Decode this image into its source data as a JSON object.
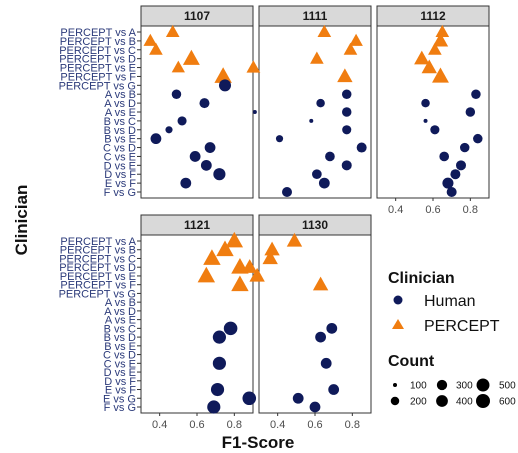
{
  "chart_data": {
    "type": "scatter",
    "xlabel": "F1-Score",
    "ylabel": "Clinician",
    "categories_top": [
      "PERCEPT vs A",
      "PERCEPT vs B",
      "PERCEPT vs C",
      "PERCEPT vs D",
      "PERCEPT vs E",
      "PERCEPT vs F",
      "PERCEPT vs G",
      "A vs B",
      "A vs D",
      "A vs E",
      "B vs C",
      "B vs D",
      "B vs E",
      "C vs D",
      "C vs E",
      "D vs E",
      "D vs F",
      "E vs F",
      "F vs G"
    ],
    "categories_bottom": [
      "PERCEPT vs A",
      "PERCEPT vs B",
      "PERCEPT vs C",
      "PERCEPT vs D",
      "PERCEPT vs E",
      "PERCEPT vs F",
      "PERCEPT vs G",
      "A vs B",
      "A vs D",
      "A vs E",
      "B vs C",
      "B vs D",
      "B vs E",
      "C vs D",
      "C vs E",
      "D vs E",
      "D vs F",
      "E vs F",
      "E vs G",
      "F vs G"
    ],
    "xticks": [
      0.4,
      0.6,
      0.8
    ],
    "xlim": [
      0.3,
      0.9
    ],
    "size_legend_range": [
      100,
      600
    ],
    "panels": [
      {
        "name": "1107",
        "row": "top",
        "points": [
          {
            "y": "PERCEPT vs A",
            "x": 0.47,
            "group": "PERCEPT",
            "count": 320
          },
          {
            "y": "PERCEPT vs B",
            "x": 0.35,
            "group": "PERCEPT",
            "count": 320
          },
          {
            "y": "PERCEPT vs C",
            "x": 0.38,
            "group": "PERCEPT",
            "count": 320
          },
          {
            "y": "PERCEPT vs D",
            "x": 0.57,
            "group": "PERCEPT",
            "count": 520
          },
          {
            "y": "PERCEPT vs E",
            "x": 0.5,
            "group": "PERCEPT",
            "count": 300
          },
          {
            "y": "PERCEPT vs F",
            "x": 0.74,
            "group": "PERCEPT",
            "count": 560
          },
          {
            "y": "PERCEPT vs G",
            "x": 0.75,
            "group": "Human",
            "count": 420
          },
          {
            "y": "A vs B",
            "x": 0.49,
            "group": "Human",
            "count": 250
          },
          {
            "y": "A vs D",
            "x": 0.64,
            "group": "Human",
            "count": 280
          },
          {
            "y": "A vs E",
            "x": 0.91,
            "group": "Human",
            "count": 100
          },
          {
            "y": "B vs C",
            "x": 0.52,
            "group": "Human",
            "count": 230
          },
          {
            "y": "B vs D",
            "x": 0.45,
            "group": "Human",
            "count": 150
          },
          {
            "y": "B vs E",
            "x": 0.38,
            "group": "Human",
            "count": 330
          },
          {
            "y": "C vs D",
            "x": 0.67,
            "group": "Human",
            "count": 330
          },
          {
            "y": "C vs E",
            "x": 0.59,
            "group": "Human",
            "count": 330
          },
          {
            "y": "D vs E",
            "x": 0.65,
            "group": "Human",
            "count": 330
          },
          {
            "y": "D vs F",
            "x": 0.72,
            "group": "Human",
            "count": 430
          },
          {
            "y": "E vs F",
            "x": 0.54,
            "group": "Human",
            "count": 330
          }
        ]
      },
      {
        "name": "1111",
        "row": "top",
        "points": [
          {
            "y": "PERCEPT vs A",
            "x": 0.65,
            "group": "PERCEPT",
            "count": 320
          },
          {
            "y": "PERCEPT vs B",
            "x": 0.82,
            "group": "PERCEPT",
            "count": 320
          },
          {
            "y": "PERCEPT vs C",
            "x": 0.79,
            "group": "PERCEPT",
            "count": 320
          },
          {
            "y": "PERCEPT vs D",
            "x": 0.61,
            "group": "PERCEPT",
            "count": 320
          },
          {
            "y": "PERCEPT vs E",
            "x": 0.27,
            "group": "PERCEPT",
            "count": 330
          },
          {
            "y": "PERCEPT vs F",
            "x": 0.76,
            "group": "PERCEPT",
            "count": 420
          },
          {
            "y": "A vs B",
            "x": 0.77,
            "group": "Human",
            "count": 250
          },
          {
            "y": "A vs D",
            "x": 0.63,
            "group": "Human",
            "count": 200
          },
          {
            "y": "A vs E",
            "x": 0.77,
            "group": "Human",
            "count": 250
          },
          {
            "y": "B vs C",
            "x": 0.58,
            "group": "Human",
            "count": 100
          },
          {
            "y": "B vs D",
            "x": 0.77,
            "group": "Human",
            "count": 230
          },
          {
            "y": "B vs E",
            "x": 0.41,
            "group": "Human",
            "count": 150
          },
          {
            "y": "C vs D",
            "x": 0.85,
            "group": "Human",
            "count": 280
          },
          {
            "y": "C vs E",
            "x": 0.68,
            "group": "Human",
            "count": 260
          },
          {
            "y": "D vs E",
            "x": 0.77,
            "group": "Human",
            "count": 280
          },
          {
            "y": "D vs F",
            "x": 0.61,
            "group": "Human",
            "count": 260
          },
          {
            "y": "E vs F",
            "x": 0.65,
            "group": "Human",
            "count": 330
          },
          {
            "y": "F vs G",
            "x": 0.45,
            "group": "Human",
            "count": 280
          }
        ]
      },
      {
        "name": "1112",
        "row": "top",
        "points": [
          {
            "y": "PERCEPT vs A",
            "x": 0.65,
            "group": "PERCEPT",
            "count": 320
          },
          {
            "y": "PERCEPT vs B",
            "x": 0.64,
            "group": "PERCEPT",
            "count": 420
          },
          {
            "y": "PERCEPT vs C",
            "x": 0.61,
            "group": "PERCEPT",
            "count": 320
          },
          {
            "y": "PERCEPT vs D",
            "x": 0.54,
            "group": "PERCEPT",
            "count": 420
          },
          {
            "y": "PERCEPT vs E",
            "x": 0.58,
            "group": "PERCEPT",
            "count": 420
          },
          {
            "y": "PERCEPT vs F",
            "x": 0.64,
            "group": "PERCEPT",
            "count": 520
          },
          {
            "y": "A vs B",
            "x": 0.83,
            "group": "Human",
            "count": 250
          },
          {
            "y": "A vs D",
            "x": 0.56,
            "group": "Human",
            "count": 200
          },
          {
            "y": "A vs E",
            "x": 0.8,
            "group": "Human",
            "count": 250
          },
          {
            "y": "B vs C",
            "x": 0.56,
            "group": "Human",
            "count": 100
          },
          {
            "y": "B vs D",
            "x": 0.61,
            "group": "Human",
            "count": 230
          },
          {
            "y": "B vs E",
            "x": 0.84,
            "group": "Human",
            "count": 250
          },
          {
            "y": "C vs D",
            "x": 0.77,
            "group": "Human",
            "count": 250
          },
          {
            "y": "C vs E",
            "x": 0.66,
            "group": "Human",
            "count": 260
          },
          {
            "y": "D vs E",
            "x": 0.75,
            "group": "Human",
            "count": 280
          },
          {
            "y": "D vs F",
            "x": 0.72,
            "group": "Human",
            "count": 280
          },
          {
            "y": "E vs F",
            "x": 0.68,
            "group": "Human",
            "count": 350
          },
          {
            "y": "F vs G",
            "x": 0.7,
            "group": "Human",
            "count": 280
          }
        ]
      },
      {
        "name": "1121",
        "row": "bottom",
        "points": [
          {
            "y": "PERCEPT vs A",
            "x": 0.8,
            "group": "PERCEPT",
            "count": 560
          },
          {
            "y": "PERCEPT vs B",
            "x": 0.75,
            "group": "PERCEPT",
            "count": 560
          },
          {
            "y": "PERCEPT vs C",
            "x": 0.68,
            "group": "PERCEPT",
            "count": 560
          },
          {
            "y": "PERCEPT vs D",
            "x": 0.83,
            "group": "PERCEPT",
            "count": 560
          },
          {
            "y": "PERCEPT vs E",
            "x": 0.65,
            "group": "PERCEPT",
            "count": 560
          },
          {
            "y": "PERCEPT vs F",
            "x": 0.83,
            "group": "PERCEPT",
            "count": 560
          },
          {
            "y": "B vs C",
            "x": 0.78,
            "group": "Human",
            "count": 560
          },
          {
            "y": "B vs D",
            "x": 0.72,
            "group": "Human",
            "count": 520
          },
          {
            "y": "C vs E",
            "x": 0.72,
            "group": "Human",
            "count": 520
          },
          {
            "y": "E vs F",
            "x": 0.71,
            "group": "Human",
            "count": 520
          },
          {
            "y": "E vs G",
            "x": 0.88,
            "group": "Human",
            "count": 560
          },
          {
            "y": "F vs G",
            "x": 0.69,
            "group": "Human",
            "count": 520
          }
        ]
      },
      {
        "name": "1130",
        "row": "bottom",
        "points": [
          {
            "y": "PERCEPT vs A",
            "x": 0.49,
            "group": "PERCEPT",
            "count": 420
          },
          {
            "y": "PERCEPT vs B",
            "x": 0.37,
            "group": "PERCEPT",
            "count": 420
          },
          {
            "y": "PERCEPT vs C",
            "x": 0.36,
            "group": "PERCEPT",
            "count": 420
          },
          {
            "y": "PERCEPT vs D",
            "x": 0.25,
            "group": "PERCEPT",
            "count": 420
          },
          {
            "y": "PERCEPT vs E",
            "x": 0.29,
            "group": "PERCEPT",
            "count": 420
          },
          {
            "y": "PERCEPT vs F",
            "x": 0.63,
            "group": "PERCEPT",
            "count": 420
          },
          {
            "y": "B vs C",
            "x": 0.69,
            "group": "Human",
            "count": 330
          },
          {
            "y": "B vs D",
            "x": 0.63,
            "group": "Human",
            "count": 330
          },
          {
            "y": "C vs E",
            "x": 0.66,
            "group": "Human",
            "count": 330
          },
          {
            "y": "E vs F",
            "x": 0.7,
            "group": "Human",
            "count": 330
          },
          {
            "y": "E vs G",
            "x": 0.51,
            "group": "Human",
            "count": 330
          },
          {
            "y": "F vs G",
            "x": 0.6,
            "group": "Human",
            "count": 330
          }
        ]
      }
    ],
    "legend": {
      "color_title": "Clinician",
      "entries": [
        {
          "name": "Human",
          "shape": "circle",
          "color": "#0f1a5a"
        },
        {
          "name": "PERCEPT",
          "shape": "triangle",
          "color": "#f07d10"
        }
      ],
      "size_title": "Count",
      "size_entries": [
        100,
        200,
        300,
        400,
        500,
        600
      ],
      "placement": "right"
    }
  }
}
